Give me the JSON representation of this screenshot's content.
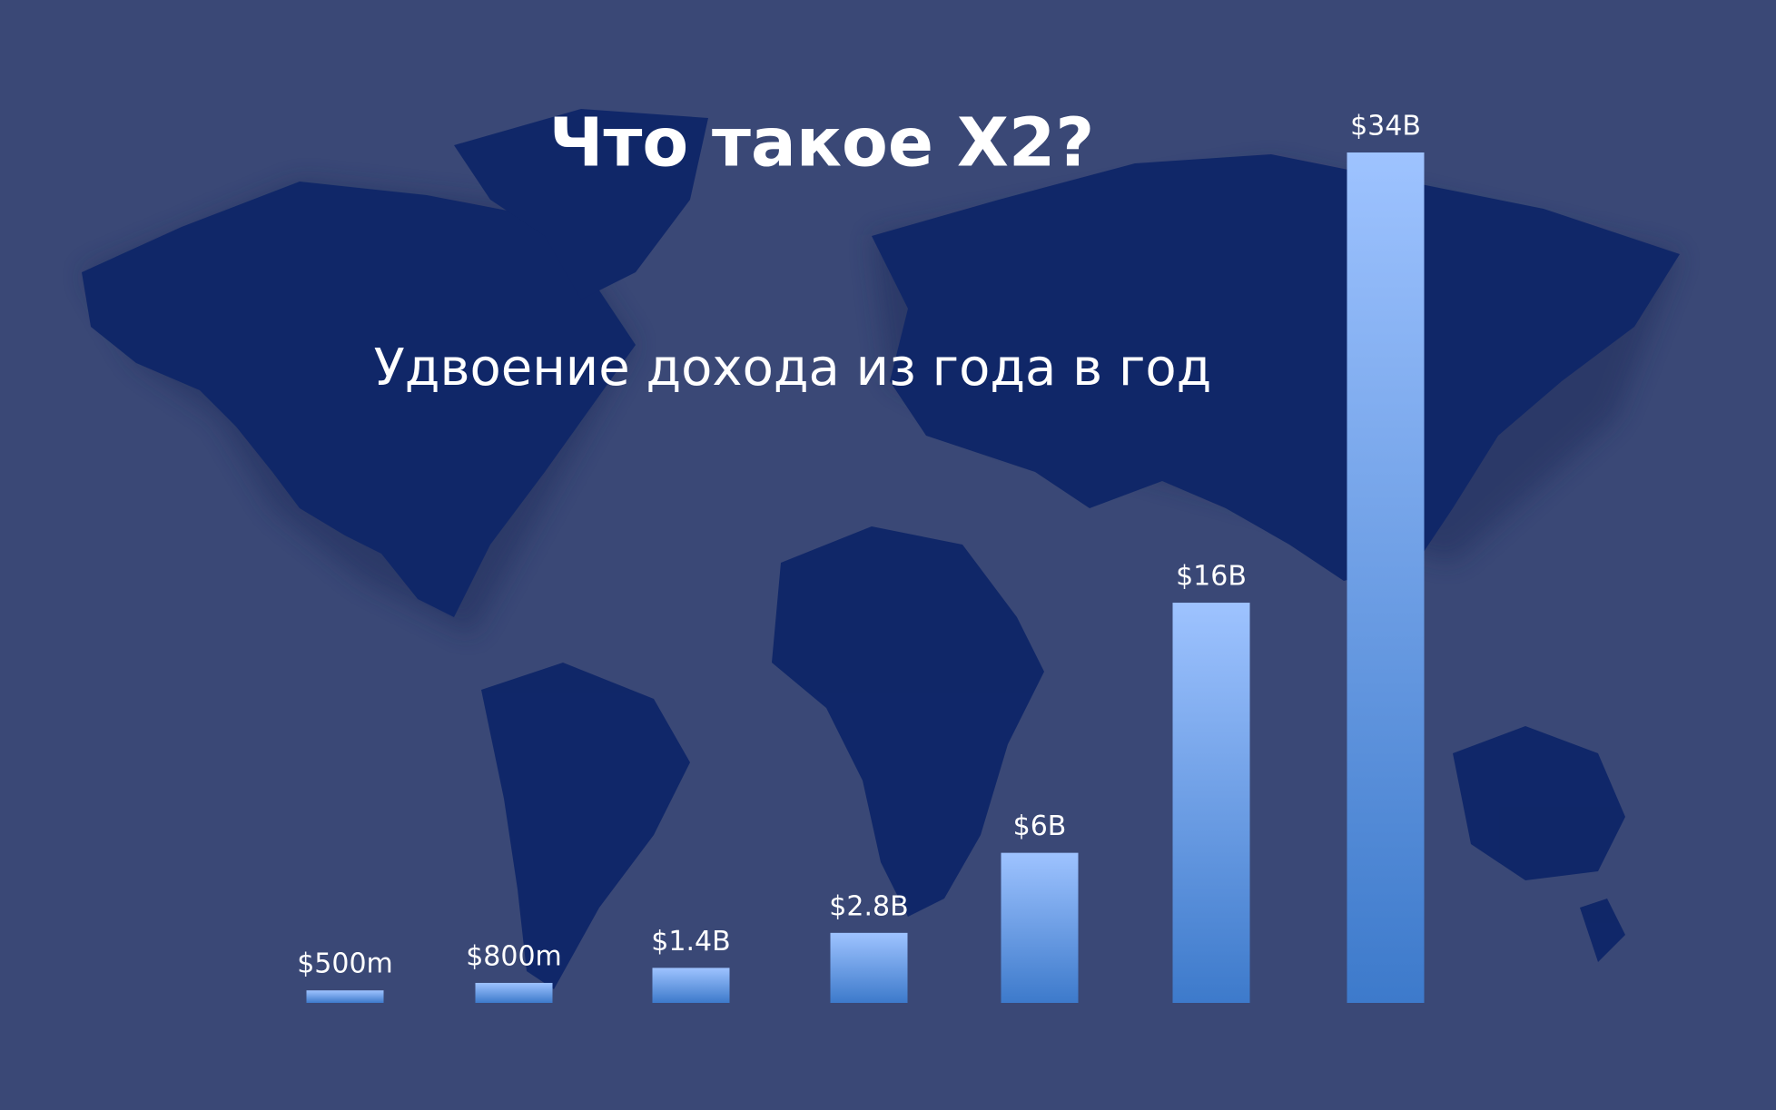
{
  "chart_data": {
    "type": "bar",
    "title": "Что такое X2?",
    "subtitle": "Удвоение дохода из года в год",
    "values": [
      0.5,
      0.8,
      1.4,
      2.8,
      6,
      16,
      34
    ],
    "value_labels": [
      "$500m",
      "$800m",
      "$1.4B",
      "$2.8B",
      "$6B",
      "$16B",
      "$34B"
    ],
    "color": "#8fb8fb"
  }
}
